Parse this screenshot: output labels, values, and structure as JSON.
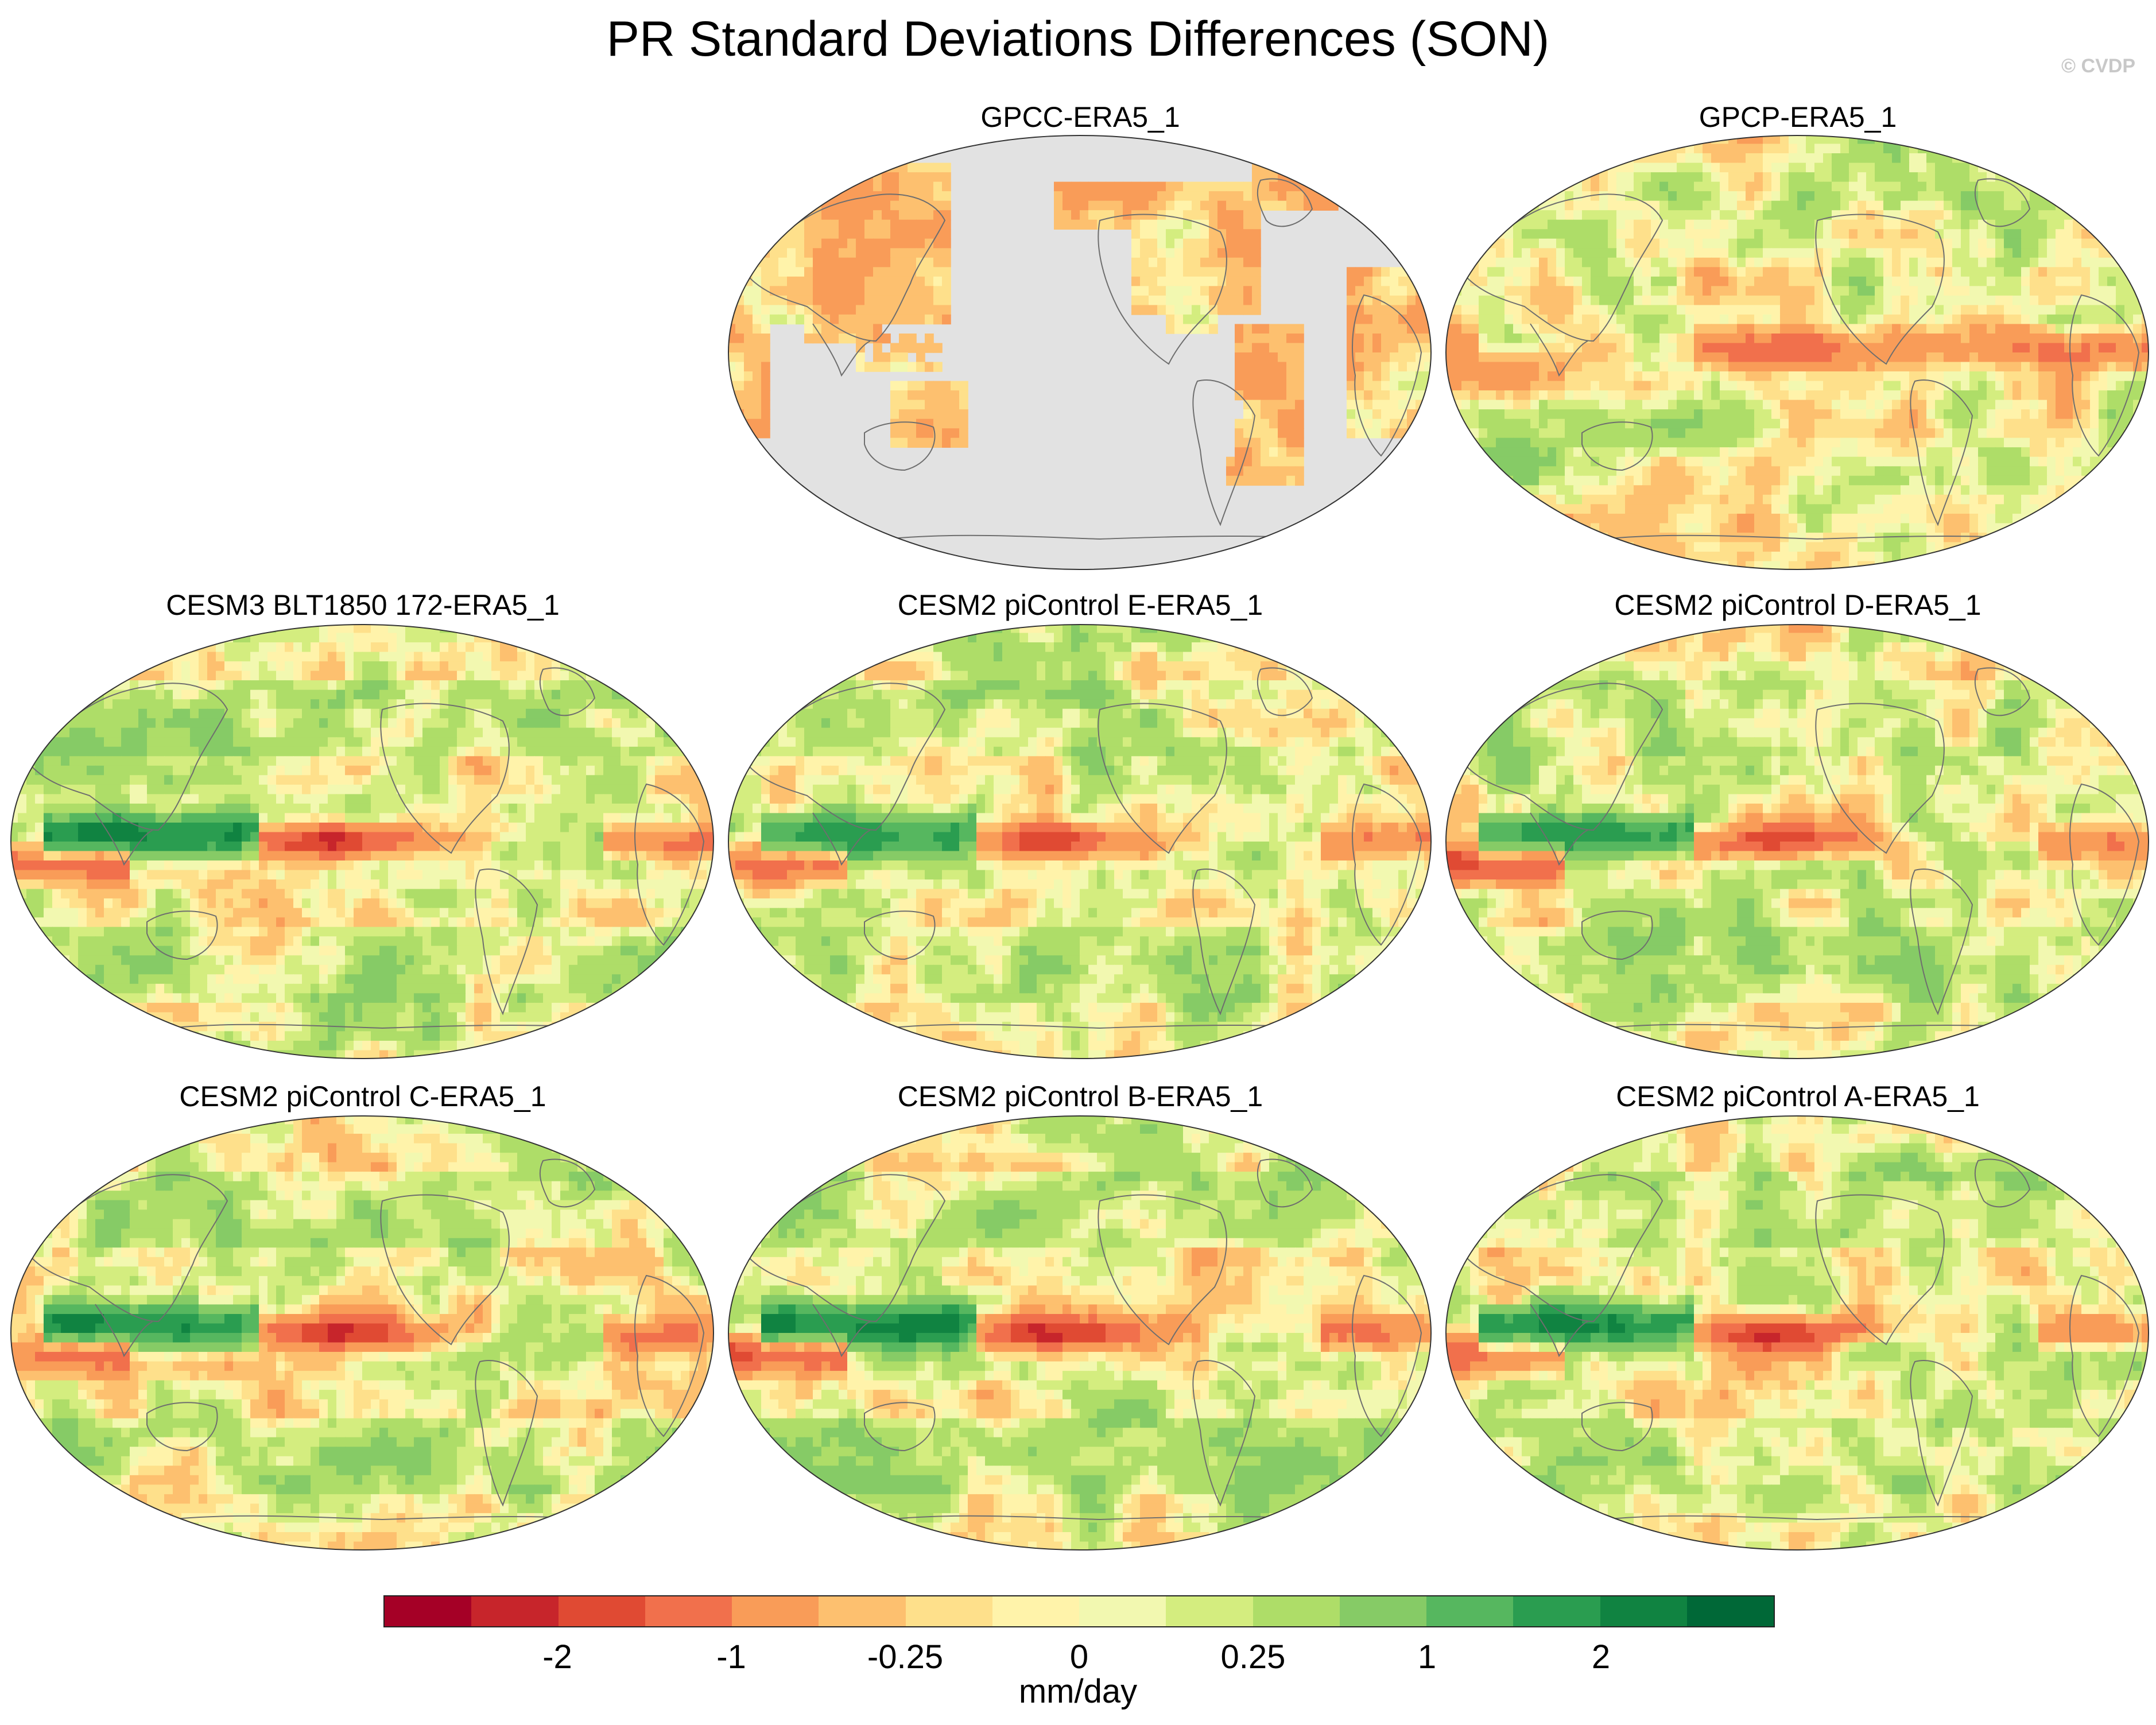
{
  "title": "PR Standard Deviations Differences (SON)",
  "credit": "© CVDP",
  "panels": [
    {
      "label": "GPCC-ERA5_1",
      "ocean_mask": true,
      "enso_strength": 0.0
    },
    {
      "label": "GPCP-ERA5_1",
      "ocean_mask": false,
      "enso_strength": 0.35
    },
    {
      "label": "CESM3 BLT1850 172-ERA5_1",
      "ocean_mask": false,
      "enso_strength": 1.0
    },
    {
      "label": "CESM2 piControl E-ERA5_1",
      "ocean_mask": false,
      "enso_strength": 0.8
    },
    {
      "label": "CESM2 piControl D-ERA5_1",
      "ocean_mask": false,
      "enso_strength": 0.8
    },
    {
      "label": "CESM2 piControl C-ERA5_1",
      "ocean_mask": false,
      "enso_strength": 0.85
    },
    {
      "label": "CESM2 piControl B-ERA5_1",
      "ocean_mask": false,
      "enso_strength": 0.9
    },
    {
      "label": "CESM2 piControl A-ERA5_1",
      "ocean_mask": false,
      "enso_strength": 0.85
    }
  ],
  "colorbar": {
    "colors": [
      "#a50026",
      "#c7252b",
      "#e04a33",
      "#f1704c",
      "#f99c58",
      "#fdc06f",
      "#fee08b",
      "#fff3aa",
      "#f2f8b0",
      "#d4ed7f",
      "#aedd68",
      "#86cb66",
      "#56b75f",
      "#2a9d50",
      "#108341",
      "#006837"
    ],
    "ticks": [
      {
        "label": "-2",
        "level": -2
      },
      {
        "label": "-1",
        "level": -1
      },
      {
        "label": "-0.25",
        "level": -0.25
      },
      {
        "label": "0",
        "level": 0
      },
      {
        "label": "0.25",
        "level": 0.25
      },
      {
        "label": "1",
        "level": 1
      },
      {
        "label": "2",
        "level": 2
      }
    ],
    "units": "mm/day"
  },
  "land_mask_color": "#e2e2e2",
  "coastline_color": "#6e6e6e"
}
